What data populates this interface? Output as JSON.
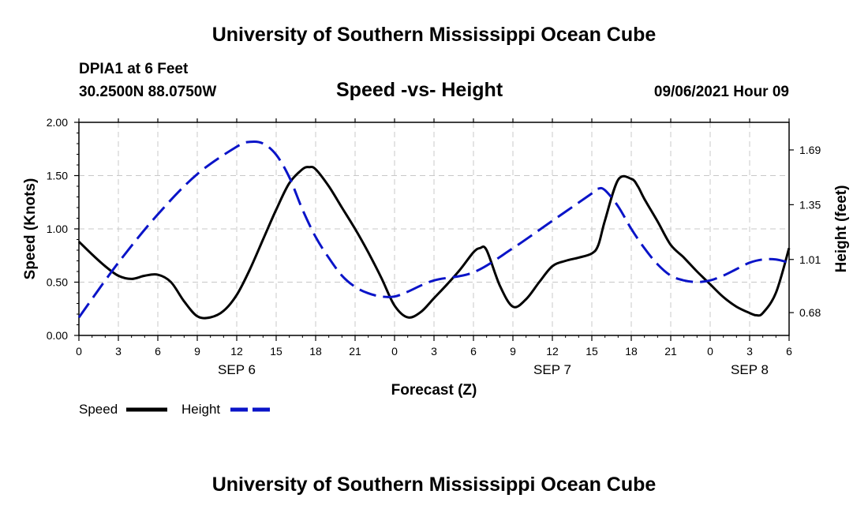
{
  "header": {
    "title": "University of Southern Mississippi Ocean Cube",
    "station": "DPIA1 at 6 Feet",
    "coordinates": "30.2500N  88.0750W",
    "chart_title": "Speed -vs- Height",
    "datetime": "09/06/2021 Hour 09"
  },
  "footer": {
    "title": "University of Southern Mississippi Ocean Cube"
  },
  "colors": {
    "speed": "#000000",
    "height": "#0a14c8",
    "grid": "#c8c8c8"
  },
  "chart_data": {
    "type": "line",
    "title": "Speed -vs- Height",
    "xlabel": "Forecast (Z)",
    "ylabel": "Speed (Knots)",
    "y2label": "Height (feet)",
    "x_unit": "hours",
    "xlim": [
      0,
      54
    ],
    "ylim": [
      0,
      2
    ],
    "y2lim": [
      0.5384,
      1.8614
    ],
    "x_ticks": [
      0,
      3,
      6,
      9,
      12,
      15,
      18,
      21,
      24,
      27,
      30,
      33,
      36,
      39,
      42,
      45,
      48,
      51,
      54
    ],
    "x_tick_labels": [
      "0",
      "3",
      "6",
      "9",
      "12",
      "15",
      "18",
      "21",
      "0",
      "3",
      "6",
      "9",
      "12",
      "15",
      "18",
      "21",
      "0",
      "3",
      "6"
    ],
    "y_ticks": [
      0,
      0.5,
      1.0,
      1.5,
      2.0
    ],
    "y_tick_labels": [
      "0.00",
      "0.50",
      "1.00",
      "1.50",
      "2.00"
    ],
    "y2_ticks": [
      0.68,
      1.01,
      1.35,
      1.69
    ],
    "y2_tick_labels": [
      "0.68",
      "1.01",
      "1.35",
      "1.69"
    ],
    "day_labels": [
      {
        "x": 12,
        "label": "SEP 6"
      },
      {
        "x": 36,
        "label": "SEP 7"
      },
      {
        "x": 51,
        "label": "SEP 8"
      }
    ],
    "grid": true,
    "legend": {
      "placement": "bottom-left",
      "entries": [
        "Speed",
        "Height"
      ]
    },
    "series": [
      {
        "name": "Speed",
        "axis": "left",
        "style": "solid",
        "x": [
          0,
          1,
          2,
          3,
          4,
          5,
          6,
          7,
          8,
          9,
          10,
          11,
          12,
          13,
          14,
          15,
          16,
          17,
          17.5,
          18,
          19,
          20,
          21,
          22,
          23,
          24,
          25,
          26,
          27,
          28,
          29,
          30,
          30.5,
          31,
          32,
          33,
          34,
          35,
          36,
          37,
          38,
          39,
          39.5,
          40,
          41,
          42,
          42.5,
          43,
          44,
          45,
          46,
          47,
          48,
          49,
          50,
          51,
          51.5,
          52,
          53,
          54
        ],
        "y": [
          0.88,
          0.76,
          0.65,
          0.56,
          0.53,
          0.56,
          0.57,
          0.5,
          0.32,
          0.18,
          0.17,
          0.23,
          0.38,
          0.62,
          0.9,
          1.18,
          1.43,
          1.56,
          1.58,
          1.56,
          1.4,
          1.2,
          1.0,
          0.78,
          0.54,
          0.28,
          0.17,
          0.22,
          0.35,
          0.48,
          0.62,
          0.78,
          0.82,
          0.8,
          0.47,
          0.27,
          0.34,
          0.5,
          0.65,
          0.7,
          0.73,
          0.77,
          0.85,
          1.08,
          1.46,
          1.47,
          1.4,
          1.28,
          1.07,
          0.85,
          0.73,
          0.6,
          0.48,
          0.36,
          0.27,
          0.21,
          0.19,
          0.21,
          0.4,
          0.82
        ]
      },
      {
        "name": "Height",
        "axis": "right",
        "style": "dashed",
        "x": [
          0,
          3,
          6,
          9,
          12,
          13,
          14,
          15,
          16,
          17,
          18,
          19,
          20,
          21,
          22,
          23,
          24,
          25,
          27,
          30,
          33,
          36,
          39,
          39.5,
          40,
          41,
          42,
          43,
          44,
          45,
          46,
          47,
          48,
          49,
          50,
          51,
          52,
          53,
          54
        ],
        "y": [
          0.65,
          0.99,
          1.29,
          1.54,
          1.71,
          1.74,
          1.73,
          1.66,
          1.52,
          1.32,
          1.15,
          1.02,
          0.91,
          0.84,
          0.8,
          0.78,
          0.78,
          0.81,
          0.88,
          0.93,
          1.08,
          1.25,
          1.42,
          1.45,
          1.44,
          1.34,
          1.2,
          1.08,
          0.98,
          0.91,
          0.88,
          0.87,
          0.88,
          0.91,
          0.95,
          0.99,
          1.01,
          1.01,
          0.99
        ]
      }
    ]
  }
}
